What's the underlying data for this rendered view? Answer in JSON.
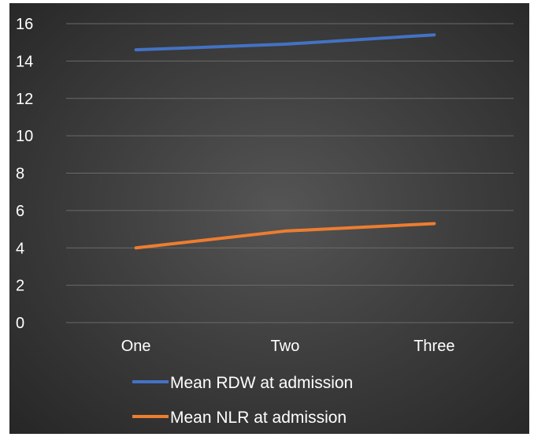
{
  "chart_data": {
    "type": "line",
    "categories": [
      "One",
      "Two",
      "Three"
    ],
    "series": [
      {
        "name": "Mean RDW at admission",
        "values": [
          14.6,
          14.9,
          15.4
        ],
        "color": "#4472c4"
      },
      {
        "name": "Mean NLR at admission",
        "values": [
          4.0,
          4.9,
          5.3
        ],
        "color": "#ed7d31"
      }
    ],
    "yticks": [
      0,
      2,
      4,
      6,
      8,
      10,
      12,
      14,
      16
    ],
    "ylim": [
      0,
      16
    ],
    "grid": true,
    "legend_position": "bottom",
    "background": "#3a3a3a"
  }
}
